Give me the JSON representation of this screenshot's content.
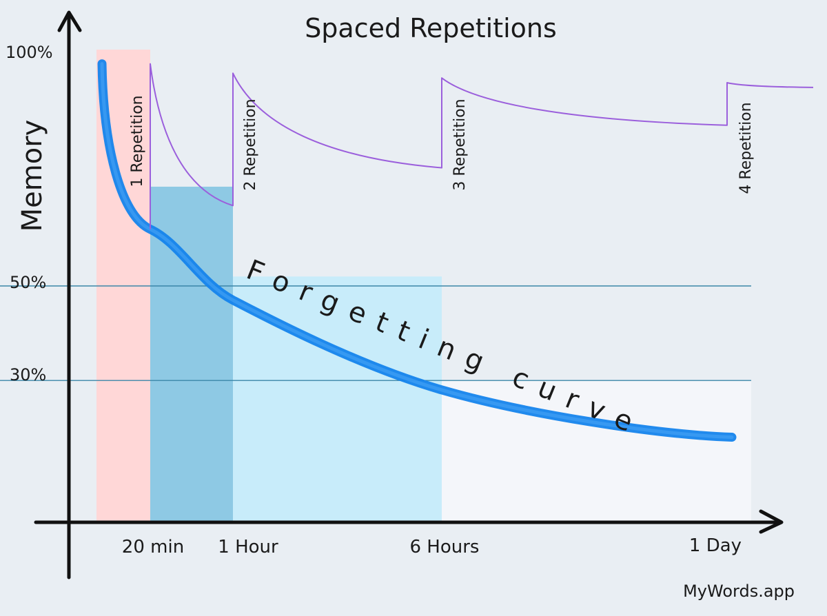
{
  "chart_data": {
    "type": "line",
    "title": "Spaced Repetitions",
    "ylabel": "Memory",
    "xlabel": "",
    "y_ticks": [
      "100%",
      "50%",
      "30%"
    ],
    "x_ticks": [
      "20 min",
      "1 Hour",
      "6 Hours",
      "1 Day"
    ],
    "curve_label": "Forgetting curve",
    "series": [
      {
        "name": "Forgetting curve",
        "x": [
          "0",
          "20 min",
          "1 Hour",
          "6 Hours",
          "1 Day"
        ],
        "y": [
          97,
          62,
          47,
          28,
          18
        ]
      }
    ],
    "repetitions": [
      {
        "label": "1 Repetition",
        "at": "20 min",
        "peak": 97,
        "trough_before_next": 67
      },
      {
        "label": "2 Repetition",
        "at": "1 Hour",
        "peak": 95,
        "trough_before_next": 75
      },
      {
        "label": "3 Repetition",
        "at": "6 Hours",
        "peak": 94,
        "trough_before_next": 84
      },
      {
        "label": "4 Repetition",
        "at": "1 Day",
        "peak": 93
      }
    ],
    "retention_bands": [
      {
        "from": "0",
        "to": "20 min",
        "level": 100
      },
      {
        "from": "20 min",
        "to": "1 Hour",
        "level": 71
      },
      {
        "from": "1 Hour",
        "to": "6 Hours",
        "level": 52
      },
      {
        "from": "6 Hours",
        "to": "1 Day",
        "level": 30
      }
    ],
    "reference_lines": [
      50,
      30
    ],
    "colors": {
      "background": "#e9eef3",
      "band_1": "#ffd7d7",
      "band_2": "#8ec9e4",
      "band_3": "#c8ecfa",
      "band_4": "#f4f6fa",
      "forgetting_curve": "#1584ec",
      "repetition_curve": "#9b5fdc",
      "reference_line": "#3a86a8",
      "axis": "#111111"
    }
  },
  "footer": {
    "brand": "MyWords.app"
  }
}
